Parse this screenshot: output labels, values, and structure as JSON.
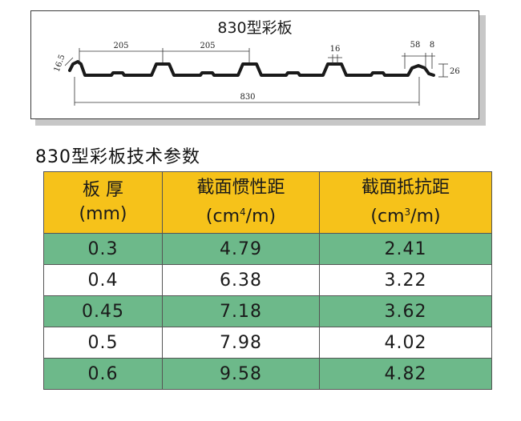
{
  "profile": {
    "title": "830型彩板",
    "dimensions": {
      "edge_height": "16.5",
      "pitch_left": "205",
      "pitch_right": "205",
      "rib_top": "16",
      "rib_width": "58",
      "end_width": "8",
      "rib_height": "26",
      "total_width": "830"
    }
  },
  "table": {
    "title": "830型彩板技术参数",
    "headers": [
      {
        "line1": "板 厚",
        "unit_pre": "(mm)",
        "unit_sup": "",
        "unit_post": ""
      },
      {
        "line1": "截面惯性距",
        "unit_pre": "(cm",
        "unit_sup": "4",
        "unit_post": "/m)"
      },
      {
        "line1": "截面抵抗距",
        "unit_pre": "(cm",
        "unit_sup": "3",
        "unit_post": "/m)"
      }
    ],
    "rows": [
      {
        "thickness": "0.3",
        "inertia": "4.79",
        "resistance": "2.41"
      },
      {
        "thickness": "0.4",
        "inertia": "6.38",
        "resistance": "3.22"
      },
      {
        "thickness": "0.45",
        "inertia": "7.18",
        "resistance": "3.62"
      },
      {
        "thickness": "0.5",
        "inertia": "7.98",
        "resistance": "4.02"
      },
      {
        "thickness": "0.6",
        "inertia": "9.58",
        "resistance": "4.82"
      }
    ]
  },
  "colors": {
    "header_bg": "#f6c21a",
    "row_green": "#6db98a",
    "row_white": "#ffffff"
  }
}
